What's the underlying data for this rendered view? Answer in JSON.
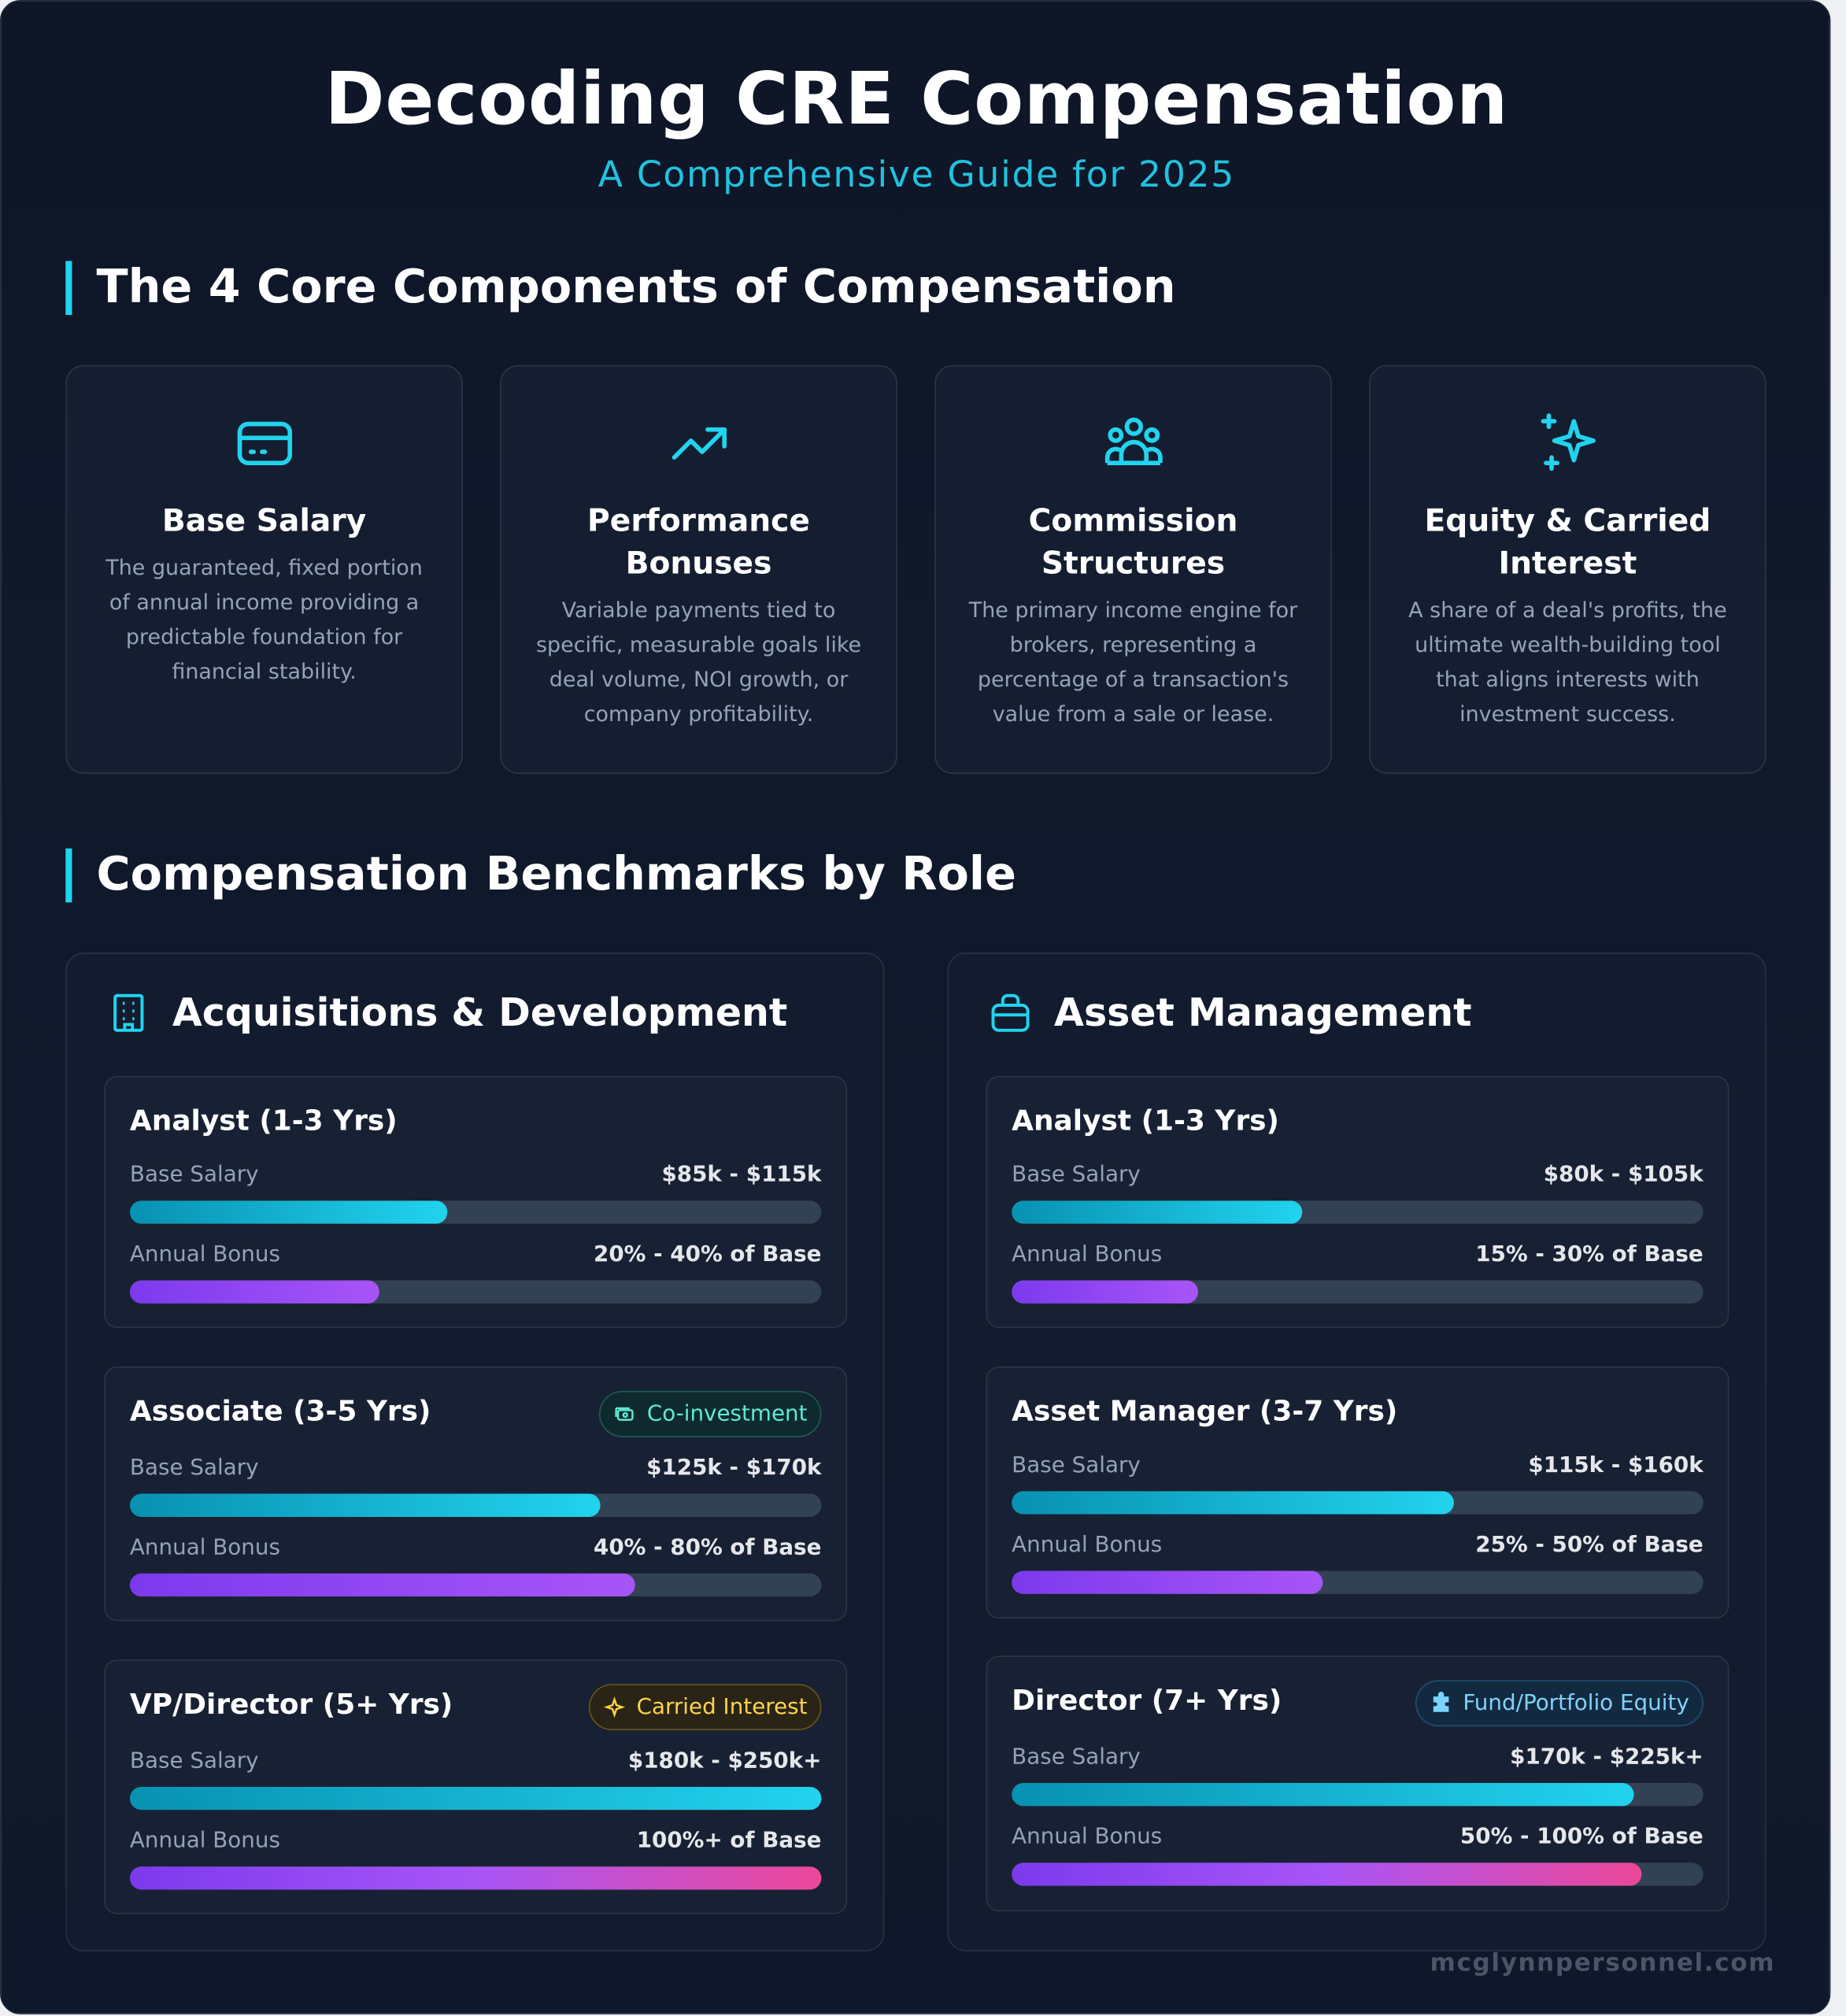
{
  "header": {
    "title": "Decoding CRE Compensation",
    "subtitle": "A Comprehensive Guide for 2025"
  },
  "components": {
    "heading": "The 4 Core Components of Compensation",
    "cards": [
      {
        "icon": "credit-card-icon",
        "title": "Base Salary",
        "desc": "The guaranteed, fixed portion of annual income providing a predictable foundation for financial stability."
      },
      {
        "icon": "trending-up-icon",
        "title": "Performance Bonuses",
        "desc": "Variable payments tied to specific, measurable goals like deal volume, NOI growth, or company profitability."
      },
      {
        "icon": "users-icon",
        "title": "Commission Structures",
        "desc": "The primary income engine for brokers, representing a percentage of a transaction's value from a sale or lease."
      },
      {
        "icon": "sparkles-icon",
        "title": "Equity & Carried Interest",
        "desc": "A share of a deal's profits, the ultimate wealth-building tool that aligns interests with investment success."
      }
    ]
  },
  "benchmarks": {
    "heading": "Compensation Benchmarks by Role",
    "base_label": "Base Salary",
    "bonus_label": "Annual Bonus",
    "groups": [
      {
        "title": "Acquisitions & Development",
        "icon": "building-icon",
        "roles": [
          {
            "title": "Analyst (1-3 Yrs)",
            "base": "$85k - $115k",
            "base_pct": 46,
            "bonus": "20% - 40% of Base",
            "bonus_pct": 36
          },
          {
            "title": "Associate (3-5 Yrs)",
            "badge": "Co-investment",
            "badge_icon": "money-icon",
            "base": "$125k - $170k",
            "base_pct": 68,
            "bonus": "40% - 80% of Base",
            "bonus_pct": 73
          },
          {
            "title": "VP/Director (5+ Yrs)",
            "badge": "Carried Interest",
            "badge_icon": "sparkle-icon",
            "base": "$180k - $250k+",
            "base_pct": 100,
            "bonus": "100%+ of Base",
            "bonus_pct": 100
          }
        ]
      },
      {
        "title": "Asset Management",
        "icon": "briefcase-icon",
        "roles": [
          {
            "title": "Analyst (1-3 Yrs)",
            "base": "$80k - $105k",
            "base_pct": 42,
            "bonus": "15% - 30% of Base",
            "bonus_pct": 27
          },
          {
            "title": "Asset Manager (3-7 Yrs)",
            "base": "$115k - $160k",
            "base_pct": 64,
            "bonus": "25% - 50% of Base",
            "bonus_pct": 45
          },
          {
            "title": "Director (7+ Yrs)",
            "badge": "Fund/Portfolio Equity",
            "badge_icon": "puzzle-icon",
            "base": "$170k - $225k+",
            "base_pct": 90,
            "bonus": "50% - 100% of Base",
            "bonus_pct": 91
          }
        ]
      }
    ]
  },
  "footer": {
    "site": "mcglynnpersonnel.com"
  },
  "colors": {
    "accent": "#22d3ee",
    "bg": "#0f172a",
    "bonus": "#a855f7",
    "pink": "#ec4899"
  }
}
